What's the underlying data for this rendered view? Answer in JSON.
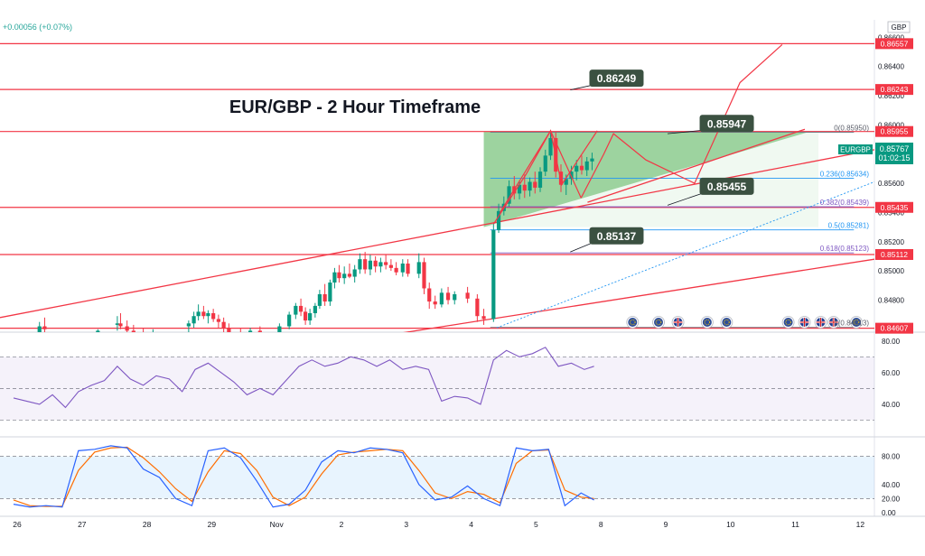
{
  "chart_data": {
    "type": "candlestick",
    "symbol": "EURGBP",
    "title": "EUR/GBP - 2 Hour Timeframe",
    "change_text": "+0.00056 (+0.07%)",
    "currency": "GBP",
    "last_price": "0.85767",
    "countdown": "01:02:15",
    "y_ticks": [
      "0.86600",
      "0.86400",
      "0.86200",
      "0.86000",
      "0.85800",
      "0.85600",
      "0.85400",
      "0.85200",
      "0.85000",
      "0.84800"
    ],
    "y_tick_values": [
      0.866,
      0.864,
      0.862,
      0.86,
      0.858,
      0.856,
      0.854,
      0.852,
      0.85,
      0.848
    ],
    "ylim": [
      0.8458,
      0.8672
    ],
    "x_ticks": [
      "26",
      "27",
      "28",
      "29",
      "Nov",
      "2",
      "3",
      "4",
      "5",
      "8",
      "9",
      "10",
      "11",
      "12"
    ],
    "x_tick_values": [
      0,
      1,
      2,
      3,
      4,
      5,
      6,
      7,
      8,
      9,
      10,
      11,
      12,
      13
    ],
    "horizontal_levels": [
      {
        "label": "0.86557",
        "value": 0.86557
      },
      {
        "label": "0.86243",
        "value": 0.86243
      },
      {
        "label": "0.85955",
        "value": 0.85955
      },
      {
        "label": "0.85435",
        "value": 0.85435
      },
      {
        "label": "0.85112",
        "value": 0.85112
      },
      {
        "label": "0.84607",
        "value": 0.84607
      }
    ],
    "fibonacci": [
      {
        "label": "0(0.85950)",
        "value": 0.8595
      },
      {
        "label": "0.236(0.85634)",
        "value": 0.85634
      },
      {
        "label": "0.382(0.85439)",
        "value": 0.85439
      },
      {
        "label": "0.5(0.85281)",
        "value": 0.85281
      },
      {
        "label": "0.618(0.85123)",
        "value": 0.85123
      },
      {
        "label": "1(0.84613)",
        "value": 0.84613
      }
    ],
    "callouts": [
      {
        "label": "0.86249",
        "x": 8.6,
        "value": 0.8632
      },
      {
        "label": "0.85947",
        "x": 10.3,
        "value": 0.8601
      },
      {
        "label": "0.85455",
        "x": 10.3,
        "value": 0.8558
      },
      {
        "label": "0.85137",
        "x": 8.6,
        "value": 0.8524
      }
    ],
    "candles": [
      {
        "x": 0.4,
        "o": 0.8458,
        "h": 0.8465,
        "l": 0.8455,
        "c": 0.8462
      },
      {
        "x": 0.48,
        "o": 0.8462,
        "h": 0.8468,
        "l": 0.8458,
        "c": 0.846
      },
      {
        "x": 1.3,
        "o": 0.8457,
        "h": 0.846,
        "l": 0.8452,
        "c": 0.8459
      },
      {
        "x": 1.6,
        "o": 0.8463,
        "h": 0.8469,
        "l": 0.8459,
        "c": 0.8464
      },
      {
        "x": 1.65,
        "o": 0.8464,
        "h": 0.8471,
        "l": 0.846,
        "c": 0.8462
      },
      {
        "x": 1.75,
        "o": 0.8462,
        "h": 0.8466,
        "l": 0.8456,
        "c": 0.8459
      },
      {
        "x": 1.85,
        "o": 0.8459,
        "h": 0.8463,
        "l": 0.8455,
        "c": 0.8457
      },
      {
        "x": 2.0,
        "o": 0.8458,
        "h": 0.8461,
        "l": 0.8454,
        "c": 0.8456
      },
      {
        "x": 2.15,
        "o": 0.8456,
        "h": 0.846,
        "l": 0.8452,
        "c": 0.8458
      },
      {
        "x": 2.7,
        "o": 0.8462,
        "h": 0.8466,
        "l": 0.8458,
        "c": 0.8464
      },
      {
        "x": 2.78,
        "o": 0.8464,
        "h": 0.8472,
        "l": 0.8461,
        "c": 0.8469
      },
      {
        "x": 2.85,
        "o": 0.8469,
        "h": 0.8477,
        "l": 0.8466,
        "c": 0.8472
      },
      {
        "x": 2.93,
        "o": 0.8472,
        "h": 0.8476,
        "l": 0.8467,
        "c": 0.8469
      },
      {
        "x": 3.0,
        "o": 0.8469,
        "h": 0.8473,
        "l": 0.8464,
        "c": 0.8471
      },
      {
        "x": 3.08,
        "o": 0.8471,
        "h": 0.8474,
        "l": 0.8465,
        "c": 0.8467
      },
      {
        "x": 3.16,
        "o": 0.8467,
        "h": 0.847,
        "l": 0.8461,
        "c": 0.8465
      },
      {
        "x": 3.24,
        "o": 0.8465,
        "h": 0.8468,
        "l": 0.8458,
        "c": 0.8461
      },
      {
        "x": 3.32,
        "o": 0.8461,
        "h": 0.8464,
        "l": 0.8455,
        "c": 0.8458
      },
      {
        "x": 3.5,
        "o": 0.8458,
        "h": 0.8461,
        "l": 0.8453,
        "c": 0.8457
      },
      {
        "x": 3.65,
        "o": 0.8457,
        "h": 0.8461,
        "l": 0.8454,
        "c": 0.8459
      },
      {
        "x": 3.8,
        "o": 0.8459,
        "h": 0.8462,
        "l": 0.8455,
        "c": 0.8456
      },
      {
        "x": 4.1,
        "o": 0.8458,
        "h": 0.8464,
        "l": 0.8455,
        "c": 0.8462
      },
      {
        "x": 4.25,
        "o": 0.8462,
        "h": 0.8472,
        "l": 0.846,
        "c": 0.847
      },
      {
        "x": 4.35,
        "o": 0.847,
        "h": 0.8478,
        "l": 0.8467,
        "c": 0.8476
      },
      {
        "x": 4.43,
        "o": 0.8476,
        "h": 0.8481,
        "l": 0.8469,
        "c": 0.8472
      },
      {
        "x": 4.5,
        "o": 0.8472,
        "h": 0.8475,
        "l": 0.8463,
        "c": 0.8466
      },
      {
        "x": 4.57,
        "o": 0.8466,
        "h": 0.8474,
        "l": 0.8463,
        "c": 0.8471
      },
      {
        "x": 4.65,
        "o": 0.8471,
        "h": 0.8478,
        "l": 0.8468,
        "c": 0.8476
      },
      {
        "x": 4.72,
        "o": 0.8476,
        "h": 0.8487,
        "l": 0.8474,
        "c": 0.8484
      },
      {
        "x": 4.8,
        "o": 0.8484,
        "h": 0.8491,
        "l": 0.8476,
        "c": 0.8479
      },
      {
        "x": 4.88,
        "o": 0.8479,
        "h": 0.8494,
        "l": 0.8476,
        "c": 0.8492
      },
      {
        "x": 4.95,
        "o": 0.8492,
        "h": 0.8502,
        "l": 0.8488,
        "c": 0.8499
      },
      {
        "x": 5.02,
        "o": 0.8499,
        "h": 0.8504,
        "l": 0.8492,
        "c": 0.8495
      },
      {
        "x": 5.1,
        "o": 0.8495,
        "h": 0.8503,
        "l": 0.8491,
        "c": 0.8498
      },
      {
        "x": 5.18,
        "o": 0.8498,
        "h": 0.8505,
        "l": 0.8495,
        "c": 0.8496
      },
      {
        "x": 5.26,
        "o": 0.8496,
        "h": 0.8504,
        "l": 0.8492,
        "c": 0.8501
      },
      {
        "x": 5.34,
        "o": 0.8501,
        "h": 0.8512,
        "l": 0.8498,
        "c": 0.8508
      },
      {
        "x": 5.42,
        "o": 0.8508,
        "h": 0.8513,
        "l": 0.8498,
        "c": 0.8501
      },
      {
        "x": 5.5,
        "o": 0.8501,
        "h": 0.8511,
        "l": 0.8497,
        "c": 0.8507
      },
      {
        "x": 5.58,
        "o": 0.8507,
        "h": 0.851,
        "l": 0.8499,
        "c": 0.8503
      },
      {
        "x": 5.66,
        "o": 0.8503,
        "h": 0.8509,
        "l": 0.8499,
        "c": 0.8506
      },
      {
        "x": 5.74,
        "o": 0.8506,
        "h": 0.8511,
        "l": 0.8501,
        "c": 0.8504
      },
      {
        "x": 5.82,
        "o": 0.8504,
        "h": 0.8508,
        "l": 0.85,
        "c": 0.8502
      },
      {
        "x": 5.9,
        "o": 0.8502,
        "h": 0.8506,
        "l": 0.8497,
        "c": 0.8499
      },
      {
        "x": 6.0,
        "o": 0.8499,
        "h": 0.8508,
        "l": 0.8496,
        "c": 0.8505
      },
      {
        "x": 6.08,
        "o": 0.8505,
        "h": 0.8508,
        "l": 0.8496,
        "c": 0.8498
      },
      {
        "x": 6.25,
        "o": 0.8498,
        "h": 0.8512,
        "l": 0.8495,
        "c": 0.8506
      },
      {
        "x": 6.33,
        "o": 0.8506,
        "h": 0.8509,
        "l": 0.8484,
        "c": 0.8488
      },
      {
        "x": 6.41,
        "o": 0.8488,
        "h": 0.8492,
        "l": 0.8474,
        "c": 0.8479
      },
      {
        "x": 6.5,
        "o": 0.8479,
        "h": 0.8483,
        "l": 0.8474,
        "c": 0.8477
      },
      {
        "x": 6.6,
        "o": 0.8477,
        "h": 0.8488,
        "l": 0.8475,
        "c": 0.8485
      },
      {
        "x": 6.7,
        "o": 0.8485,
        "h": 0.8489,
        "l": 0.8477,
        "c": 0.848
      },
      {
        "x": 6.8,
        "o": 0.848,
        "h": 0.8486,
        "l": 0.8477,
        "c": 0.8484
      },
      {
        "x": 7.0,
        "o": 0.8485,
        "h": 0.8489,
        "l": 0.8478,
        "c": 0.8481
      },
      {
        "x": 7.15,
        "o": 0.8481,
        "h": 0.8484,
        "l": 0.8465,
        "c": 0.8469
      },
      {
        "x": 7.25,
        "o": 0.8469,
        "h": 0.8474,
        "l": 0.8463,
        "c": 0.8467
      },
      {
        "x": 7.4,
        "o": 0.8467,
        "h": 0.8532,
        "l": 0.8465,
        "c": 0.8528
      },
      {
        "x": 7.48,
        "o": 0.8528,
        "h": 0.8546,
        "l": 0.8526,
        "c": 0.8541
      },
      {
        "x": 7.56,
        "o": 0.8541,
        "h": 0.8551,
        "l": 0.8538,
        "c": 0.8546
      },
      {
        "x": 7.64,
        "o": 0.8546,
        "h": 0.8562,
        "l": 0.8544,
        "c": 0.8558
      },
      {
        "x": 7.72,
        "o": 0.8558,
        "h": 0.8565,
        "l": 0.8549,
        "c": 0.8553
      },
      {
        "x": 7.8,
        "o": 0.8553,
        "h": 0.8562,
        "l": 0.8549,
        "c": 0.8559
      },
      {
        "x": 7.88,
        "o": 0.8559,
        "h": 0.8566,
        "l": 0.855,
        "c": 0.8555
      },
      {
        "x": 7.96,
        "o": 0.8555,
        "h": 0.8564,
        "l": 0.8551,
        "c": 0.8561
      },
      {
        "x": 8.04,
        "o": 0.8561,
        "h": 0.8568,
        "l": 0.8553,
        "c": 0.8557
      },
      {
        "x": 8.12,
        "o": 0.8557,
        "h": 0.8571,
        "l": 0.8554,
        "c": 0.8568
      },
      {
        "x": 8.2,
        "o": 0.8568,
        "h": 0.8583,
        "l": 0.8565,
        "c": 0.8579
      },
      {
        "x": 8.28,
        "o": 0.8579,
        "h": 0.8596,
        "l": 0.8576,
        "c": 0.8591
      },
      {
        "x": 8.36,
        "o": 0.8591,
        "h": 0.8595,
        "l": 0.8564,
        "c": 0.8568
      },
      {
        "x": 8.44,
        "o": 0.8568,
        "h": 0.8573,
        "l": 0.8554,
        "c": 0.8559
      },
      {
        "x": 8.52,
        "o": 0.8559,
        "h": 0.8566,
        "l": 0.8552,
        "c": 0.8563
      },
      {
        "x": 8.6,
        "o": 0.8563,
        "h": 0.8572,
        "l": 0.8559,
        "c": 0.8568
      },
      {
        "x": 8.68,
        "o": 0.8568,
        "h": 0.8576,
        "l": 0.8562,
        "c": 0.8572
      },
      {
        "x": 8.76,
        "o": 0.8572,
        "h": 0.8579,
        "l": 0.8566,
        "c": 0.8569
      },
      {
        "x": 8.84,
        "o": 0.8569,
        "h": 0.8578,
        "l": 0.8565,
        "c": 0.8575
      },
      {
        "x": 8.92,
        "o": 0.8575,
        "h": 0.8581,
        "l": 0.8569,
        "c": 0.8577
      }
    ],
    "rsi": {
      "ylim": [
        20,
        85
      ],
      "ticks": [
        "80.00",
        "60.00",
        "40.00"
      ],
      "tick_values": [
        80,
        60,
        40
      ],
      "bands": [
        70,
        50,
        30
      ],
      "x": [
        0,
        0.2,
        0.4,
        0.6,
        0.8,
        1.0,
        1.2,
        1.4,
        1.6,
        1.8,
        2.0,
        2.2,
        2.4,
        2.6,
        2.8,
        3.0,
        3.2,
        3.4,
        3.6,
        3.8,
        4.0,
        4.2,
        4.4,
        4.6,
        4.8,
        5.0,
        5.2,
        5.4,
        5.6,
        5.8,
        6.0,
        6.2,
        6.4,
        6.6,
        6.8,
        7.0,
        7.2,
        7.4,
        7.6,
        7.8,
        8.0,
        8.2,
        8.4,
        8.6,
        8.8,
        8.95
      ],
      "values": [
        44,
        42,
        40,
        46,
        38,
        48,
        52,
        55,
        64,
        56,
        52,
        58,
        56,
        48,
        62,
        66,
        60,
        54,
        46,
        50,
        46,
        55,
        64,
        68,
        64,
        66,
        70,
        68,
        64,
        68,
        62,
        64,
        62,
        42,
        45,
        44,
        40,
        68,
        74,
        70,
        72,
        76,
        64,
        66,
        62,
        64
      ]
    },
    "stochastic": {
      "ylim": [
        0,
        100
      ],
      "ticks": [
        "80.00",
        "40.00",
        "20.00",
        "0.00"
      ],
      "tick_values": [
        80,
        40,
        20,
        0
      ],
      "bands": [
        80,
        20
      ],
      "x": [
        0,
        0.25,
        0.5,
        0.75,
        1.0,
        1.25,
        1.5,
        1.75,
        2.0,
        2.25,
        2.5,
        2.75,
        3.0,
        3.25,
        3.5,
        3.75,
        4.0,
        4.25,
        4.5,
        4.75,
        5.0,
        5.25,
        5.5,
        5.75,
        6.0,
        6.25,
        6.5,
        6.75,
        7.0,
        7.25,
        7.5,
        7.75,
        8.0,
        8.25,
        8.5,
        8.75,
        8.95
      ],
      "k": [
        12,
        8,
        10,
        8,
        88,
        90,
        95,
        92,
        62,
        50,
        20,
        10,
        88,
        92,
        78,
        45,
        8,
        12,
        32,
        72,
        88,
        85,
        92,
        90,
        85,
        40,
        18,
        22,
        38,
        20,
        10,
        92,
        88,
        90,
        10,
        28,
        18
      ],
      "d": [
        18,
        10,
        9,
        9,
        60,
        86,
        92,
        93,
        78,
        58,
        34,
        16,
        58,
        88,
        84,
        60,
        22,
        10,
        22,
        55,
        82,
        86,
        88,
        90,
        88,
        60,
        28,
        20,
        30,
        26,
        14,
        70,
        88,
        89,
        32,
        22,
        20
      ]
    }
  }
}
